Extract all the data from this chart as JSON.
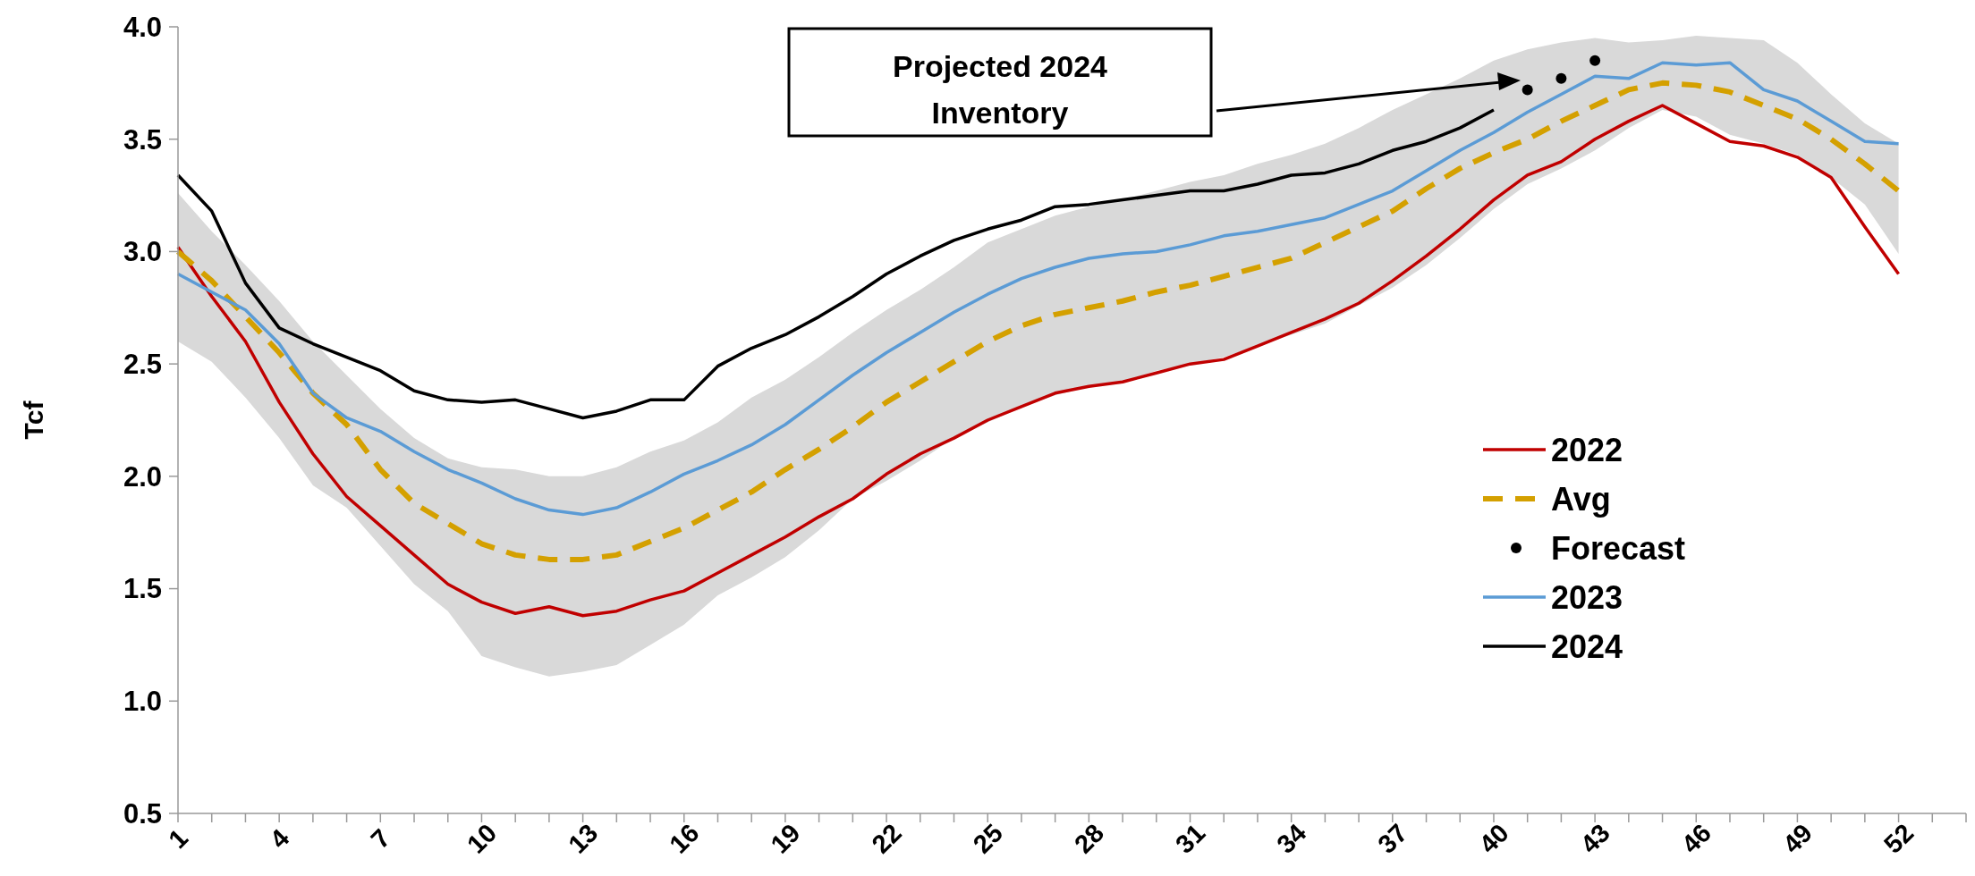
{
  "chart_data": {
    "type": "line",
    "ylabel": "Tcf",
    "x": [
      1,
      2,
      3,
      4,
      5,
      6,
      7,
      8,
      9,
      10,
      11,
      12,
      13,
      14,
      15,
      16,
      17,
      18,
      19,
      20,
      21,
      22,
      23,
      24,
      25,
      26,
      27,
      28,
      29,
      30,
      31,
      32,
      33,
      34,
      35,
      36,
      37,
      38,
      39,
      40,
      41,
      42,
      43,
      44,
      45,
      46,
      47,
      48,
      49,
      50,
      51,
      52
    ],
    "xlim": [
      1,
      54
    ],
    "xticks": [
      1,
      {
        "value": 2,
        "label": null
      },
      {
        "value": 3,
        "label": null
      },
      4,
      {
        "value": 5,
        "label": null
      },
      {
        "value": 6,
        "label": null
      },
      7,
      {
        "value": 8,
        "label": null
      },
      {
        "value": 9,
        "label": null
      },
      10,
      {
        "value": 11,
        "label": null
      },
      {
        "value": 12,
        "label": null
      },
      13,
      {
        "value": 14,
        "label": null
      },
      {
        "value": 15,
        "label": null
      },
      16,
      {
        "value": 17,
        "label": null
      },
      {
        "value": 18,
        "label": null
      },
      19,
      {
        "value": 20,
        "label": null
      },
      {
        "value": 21,
        "label": null
      },
      22,
      {
        "value": 23,
        "label": null
      },
      {
        "value": 24,
        "label": null
      },
      25,
      {
        "value": 26,
        "label": null
      },
      {
        "value": 27,
        "label": null
      },
      28,
      {
        "value": 29,
        "label": null
      },
      {
        "value": 30,
        "label": null
      },
      31,
      {
        "value": 32,
        "label": null
      },
      {
        "value": 33,
        "label": null
      },
      34,
      {
        "value": 35,
        "label": null
      },
      {
        "value": 36,
        "label": null
      },
      37,
      {
        "value": 38,
        "label": null
      },
      {
        "value": 39,
        "label": null
      },
      40,
      {
        "value": 41,
        "label": null
      },
      {
        "value": 42,
        "label": null
      },
      43,
      {
        "value": 44,
        "label": null
      },
      {
        "value": 45,
        "label": null
      },
      46,
      {
        "value": 47,
        "label": null
      },
      {
        "value": 48,
        "label": null
      },
      49,
      {
        "value": 50,
        "label": null
      },
      {
        "value": 51,
        "label": null
      },
      52,
      {
        "value": 53,
        "label": null
      },
      {
        "value": 54,
        "label": null
      }
    ],
    "ylim": [
      0.5,
      4.0
    ],
    "yticks": [
      {
        "value": 0.5,
        "label": "0.5"
      },
      {
        "value": 1,
        "label": "1.0"
      },
      {
        "value": 1.5,
        "label": "1.5"
      },
      {
        "value": 2,
        "label": "2.0"
      },
      {
        "value": 2.5,
        "label": "2.5"
      },
      {
        "value": 3,
        "label": "3.0"
      },
      {
        "value": 3.5,
        "label": "3.5"
      },
      {
        "value": 4,
        "label": "4.0"
      }
    ],
    "grid": false,
    "legend": "right",
    "marker": "none",
    "series": [
      {
        "name": "2022",
        "color": "#c00000",
        "line_style": "solid",
        "values": [
          3.02,
          2.8,
          2.6,
          2.33,
          2.1,
          1.91,
          1.78,
          1.65,
          1.52,
          1.44,
          1.39,
          1.42,
          1.38,
          1.4,
          1.45,
          1.49,
          1.57,
          1.65,
          1.73,
          1.82,
          1.9,
          2.01,
          2.1,
          2.17,
          2.25,
          2.31,
          2.37,
          2.4,
          2.42,
          2.46,
          2.5,
          2.52,
          2.58,
          2.64,
          2.7,
          2.77,
          2.87,
          2.98,
          3.1,
          3.23,
          3.34,
          3.4,
          3.5,
          3.58,
          3.65,
          3.57,
          3.49,
          3.47,
          3.42,
          3.33,
          3.11,
          2.9
        ]
      },
      {
        "name": "Avg",
        "color": "#d4a000",
        "line_style": "dashed",
        "values": [
          3.0,
          2.87,
          2.71,
          2.55,
          2.37,
          2.23,
          2.03,
          1.88,
          1.79,
          1.7,
          1.65,
          1.63,
          1.63,
          1.65,
          1.71,
          1.77,
          1.85,
          1.93,
          2.03,
          2.12,
          2.22,
          2.33,
          2.42,
          2.51,
          2.6,
          2.67,
          2.72,
          2.75,
          2.78,
          2.82,
          2.85,
          2.89,
          2.93,
          2.97,
          3.04,
          3.11,
          3.18,
          3.28,
          3.37,
          3.44,
          3.5,
          3.58,
          3.65,
          3.72,
          3.75,
          3.74,
          3.71,
          3.65,
          3.59,
          3.5,
          3.39,
          3.27
        ],
        "lower": [
          2.6,
          2.51,
          2.35,
          2.17,
          1.96,
          1.86,
          1.69,
          1.52,
          1.4,
          1.2,
          1.15,
          1.11,
          1.13,
          1.16,
          1.25,
          1.34,
          1.47,
          1.55,
          1.64,
          1.76,
          1.9,
          1.98,
          2.07,
          2.17,
          2.24,
          2.31,
          2.36,
          2.4,
          2.42,
          2.47,
          2.5,
          2.53,
          2.58,
          2.63,
          2.68,
          2.76,
          2.84,
          2.94,
          3.06,
          3.19,
          3.3,
          3.37,
          3.45,
          3.55,
          3.63,
          3.6,
          3.52,
          3.48,
          3.43,
          3.33,
          3.21,
          2.99
        ],
        "upper": [
          3.26,
          3.09,
          2.94,
          2.78,
          2.6,
          2.45,
          2.3,
          2.17,
          2.08,
          2.04,
          2.03,
          2.0,
          2.0,
          2.04,
          2.11,
          2.16,
          2.24,
          2.35,
          2.43,
          2.53,
          2.64,
          2.74,
          2.83,
          2.93,
          3.04,
          3.1,
          3.16,
          3.2,
          3.23,
          3.27,
          3.31,
          3.34,
          3.39,
          3.43,
          3.48,
          3.55,
          3.63,
          3.7,
          3.77,
          3.85,
          3.9,
          3.93,
          3.95,
          3.93,
          3.94,
          3.96,
          3.95,
          3.94,
          3.84,
          3.7,
          3.57,
          3.48
        ]
      },
      {
        "name": "Forecast",
        "type": "scatter",
        "color": "#000000",
        "marker": "circle",
        "x": [
          41,
          42,
          43
        ],
        "values": [
          3.72,
          3.77,
          3.85
        ]
      },
      {
        "name": "2023",
        "color": "#5b9bd5",
        "line_style": "solid",
        "values": [
          2.9,
          2.82,
          2.74,
          2.59,
          2.37,
          2.26,
          2.2,
          2.11,
          2.03,
          1.97,
          1.9,
          1.85,
          1.83,
          1.86,
          1.93,
          2.01,
          2.07,
          2.14,
          2.23,
          2.34,
          2.45,
          2.55,
          2.64,
          2.73,
          2.81,
          2.88,
          2.93,
          2.97,
          2.99,
          3.0,
          3.03,
          3.07,
          3.09,
          3.12,
          3.15,
          3.21,
          3.27,
          3.36,
          3.45,
          3.53,
          3.62,
          3.7,
          3.78,
          3.77,
          3.84,
          3.83,
          3.84,
          3.72,
          3.67,
          3.58,
          3.49,
          3.48
        ]
      },
      {
        "name": "2024",
        "color": "#000000",
        "line_style": "solid",
        "values": [
          3.34,
          3.18,
          2.86,
          2.66,
          2.59,
          2.53,
          2.47,
          2.38,
          2.34,
          2.33,
          2.34,
          2.3,
          2.26,
          2.29,
          2.34,
          2.34,
          2.49,
          2.57,
          2.63,
          2.71,
          2.8,
          2.9,
          2.98,
          3.05,
          3.1,
          3.14,
          3.2,
          3.21,
          3.23,
          3.25,
          3.27,
          3.27,
          3.3,
          3.34,
          3.35,
          3.39,
          3.45,
          3.49,
          3.55,
          3.63,
          null,
          null,
          null,
          null,
          null,
          null,
          null,
          null,
          null,
          null,
          null,
          null
        ]
      }
    ],
    "annotations": [
      "Projected 2024\nInventory"
    ]
  }
}
